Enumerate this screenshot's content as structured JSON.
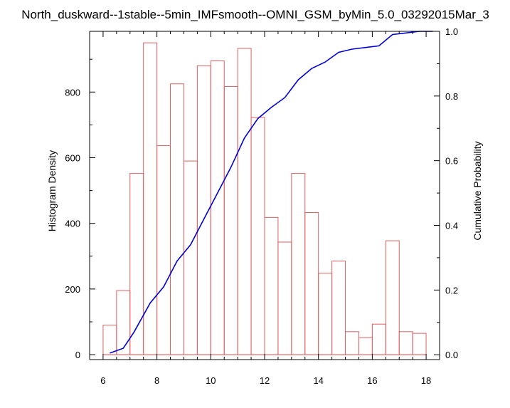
{
  "chart_data": {
    "type": "bar",
    "title": "North_duskward--1stable--5min_IMFsmooth--OMNI_GSM_byMin_5.0_03292015Mar_3",
    "ylabel": "Histogram Density",
    "y2label": "Cumulative Probability",
    "xlim": [
      5.5,
      18.5
    ],
    "ylim": [
      -15,
      985
    ],
    "y2lim": [
      -0.015,
      1.0
    ],
    "x_ticks": [
      6,
      8,
      10,
      12,
      14,
      16,
      18
    ],
    "y_ticks": [
      0,
      200,
      400,
      600,
      800
    ],
    "y2_ticks": [
      0.0,
      0.2,
      0.4,
      0.6,
      0.8,
      1.0
    ],
    "grid": false,
    "bar_width": 0.5,
    "bar_color": "#e06060",
    "line_color": "#0000dd",
    "histogram": {
      "name": "Histogram Density",
      "x": [
        6.0,
        6.5,
        7.0,
        7.5,
        8.0,
        8.5,
        9.0,
        9.5,
        10.0,
        10.5,
        11.0,
        11.5,
        12.0,
        12.5,
        13.0,
        13.5,
        14.0,
        14.5,
        15.0,
        15.5,
        16.0,
        16.5,
        17.0,
        17.5
      ],
      "values": [
        90,
        195,
        552,
        950,
        637,
        825,
        590,
        880,
        895,
        817,
        933,
        723,
        418,
        343,
        552,
        433,
        248,
        285,
        70,
        52,
        93,
        347,
        70,
        65
      ]
    },
    "cumulative": {
      "name": "Cumulative Probability",
      "x": [
        6.25,
        6.75,
        7.15,
        7.75,
        8.25,
        8.75,
        9.25,
        9.75,
        10.25,
        10.75,
        11.25,
        11.75,
        12.25,
        12.75,
        13.25,
        13.75,
        14.25,
        14.75,
        15.25,
        15.75,
        16.25,
        16.75,
        17.25,
        17.75,
        18.25
      ],
      "values": [
        0.005,
        0.02,
        0.07,
        0.16,
        0.21,
        0.29,
        0.34,
        0.42,
        0.5,
        0.58,
        0.67,
        0.73,
        0.765,
        0.795,
        0.85,
        0.885,
        0.905,
        0.935,
        0.945,
        0.95,
        0.955,
        0.99,
        0.995,
        1.0,
        1.0
      ]
    }
  }
}
